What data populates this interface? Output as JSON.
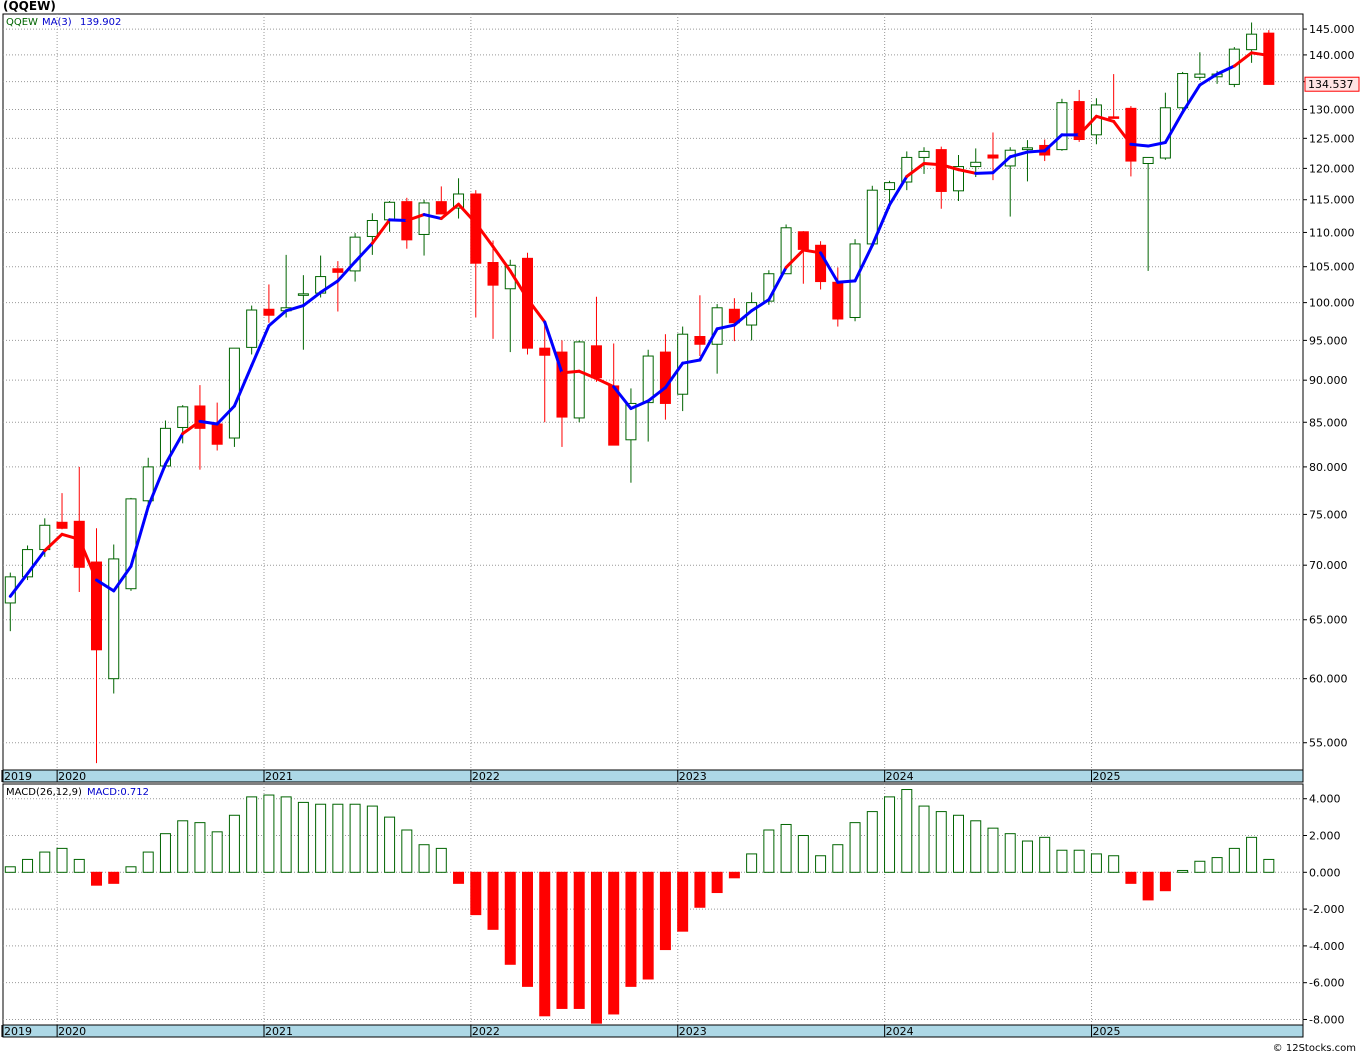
{
  "header": {
    "title": "(QQEW)"
  },
  "footer": {
    "copyright": "© 12Stocks.com"
  },
  "colors": {
    "up": "#006400",
    "down": "#ff0000",
    "ma_up": "#0000ff",
    "ma_down": "#ff0000",
    "axis_band": "#add8e6",
    "grid": "#999999"
  },
  "chart_data": [
    {
      "type": "candlestick",
      "legend": {
        "symbol": "QQEW",
        "ma_label": "MA(3)",
        "ma_value": "139.902"
      },
      "last_price_label": "134.537",
      "y_scale": "log",
      "ylim": [
        53.0,
        148.0
      ],
      "y_ticks": [
        "145.000",
        "140.000",
        "135.000",
        "130.000",
        "125.000",
        "120.000",
        "115.000",
        "110.000",
        "105.000",
        "100.000",
        "95.000",
        "90.000",
        "85.000",
        "80.000",
        "75.000",
        "70.000",
        "65.000",
        "60.000",
        "55.000"
      ],
      "x_labels": [
        {
          "label": "2019",
          "index": -0.1
        },
        {
          "label": "2020",
          "index": 3.1
        },
        {
          "label": "2021",
          "index": 15.1
        },
        {
          "label": "2022",
          "index": 27.1
        },
        {
          "label": "2023",
          "index": 39.1
        },
        {
          "label": "2024",
          "index": 51.1
        },
        {
          "label": "2025",
          "index": 63.1
        }
      ],
      "candles": [
        {
          "o": 66.5,
          "h": 69.3,
          "l": 64.0,
          "c": 68.9
        },
        {
          "o": 68.9,
          "h": 71.9,
          "l": 68.6,
          "c": 71.5
        },
        {
          "o": 71.5,
          "h": 74.6,
          "l": 70.8,
          "c": 73.9
        },
        {
          "o": 74.2,
          "h": 77.2,
          "l": 73.5,
          "c": 73.6
        },
        {
          "o": 74.3,
          "h": 80.0,
          "l": 67.5,
          "c": 69.8
        },
        {
          "o": 70.3,
          "h": 73.6,
          "l": 53.5,
          "c": 62.4
        },
        {
          "o": 60.0,
          "h": 72.0,
          "l": 58.8,
          "c": 70.6
        },
        {
          "o": 67.8,
          "h": 76.7,
          "l": 67.6,
          "c": 76.6
        },
        {
          "o": 76.4,
          "h": 81.0,
          "l": 75.8,
          "c": 80.0
        },
        {
          "o": 80.1,
          "h": 85.2,
          "l": 79.9,
          "c": 84.3
        },
        {
          "o": 84.4,
          "h": 87.0,
          "l": 82.6,
          "c": 86.8
        },
        {
          "o": 86.9,
          "h": 89.4,
          "l": 79.7,
          "c": 84.3
        },
        {
          "o": 84.8,
          "h": 87.3,
          "l": 81.8,
          "c": 82.5
        },
        {
          "o": 83.2,
          "h": 94.0,
          "l": 82.2,
          "c": 94.0
        },
        {
          "o": 94.1,
          "h": 99.6,
          "l": 93.2,
          "c": 99.0
        },
        {
          "o": 99.1,
          "h": 102.5,
          "l": 97.3,
          "c": 98.3
        },
        {
          "o": 98.9,
          "h": 106.7,
          "l": 98.0,
          "c": 99.3
        },
        {
          "o": 101.0,
          "h": 103.8,
          "l": 93.8,
          "c": 101.2
        },
        {
          "o": 101.3,
          "h": 106.6,
          "l": 100.7,
          "c": 103.6
        },
        {
          "o": 104.7,
          "h": 105.8,
          "l": 98.8,
          "c": 104.2
        },
        {
          "o": 104.4,
          "h": 109.9,
          "l": 102.9,
          "c": 109.3
        },
        {
          "o": 109.4,
          "h": 112.9,
          "l": 106.7,
          "c": 111.8
        },
        {
          "o": 111.9,
          "h": 114.8,
          "l": 110.1,
          "c": 114.6
        },
        {
          "o": 114.7,
          "h": 115.3,
          "l": 107.6,
          "c": 108.9
        },
        {
          "o": 109.7,
          "h": 115.0,
          "l": 106.6,
          "c": 114.5
        },
        {
          "o": 114.7,
          "h": 117.1,
          "l": 112.9,
          "c": 112.8
        },
        {
          "o": 113.7,
          "h": 118.4,
          "l": 112.1,
          "c": 115.9
        },
        {
          "o": 115.9,
          "h": 116.5,
          "l": 98.0,
          "c": 105.5
        },
        {
          "o": 105.6,
          "h": 108.8,
          "l": 95.2,
          "c": 102.4
        },
        {
          "o": 101.9,
          "h": 106.0,
          "l": 93.5,
          "c": 105.2
        },
        {
          "o": 106.2,
          "h": 107.0,
          "l": 93.2,
          "c": 94.0
        },
        {
          "o": 94.0,
          "h": 97.0,
          "l": 85.0,
          "c": 93.1
        },
        {
          "o": 93.5,
          "h": 95.0,
          "l": 82.2,
          "c": 85.6
        },
        {
          "o": 85.5,
          "h": 95.0,
          "l": 85.0,
          "c": 94.8
        },
        {
          "o": 94.3,
          "h": 100.8,
          "l": 89.8,
          "c": 90.3
        },
        {
          "o": 89.3,
          "h": 94.6,
          "l": 82.4,
          "c": 82.4
        },
        {
          "o": 83.0,
          "h": 89.0,
          "l": 78.3,
          "c": 87.2
        },
        {
          "o": 87.3,
          "h": 93.8,
          "l": 82.8,
          "c": 93.0
        },
        {
          "o": 93.5,
          "h": 95.8,
          "l": 85.3,
          "c": 87.2
        },
        {
          "o": 88.3,
          "h": 96.8,
          "l": 86.3,
          "c": 95.8
        },
        {
          "o": 95.5,
          "h": 101.0,
          "l": 93.0,
          "c": 94.5
        },
        {
          "o": 94.5,
          "h": 99.8,
          "l": 90.8,
          "c": 99.3
        },
        {
          "o": 99.1,
          "h": 100.6,
          "l": 94.9,
          "c": 97.3
        },
        {
          "o": 97.0,
          "h": 101.4,
          "l": 95.0,
          "c": 100.0
        },
        {
          "o": 100.2,
          "h": 104.5,
          "l": 99.7,
          "c": 104.0
        },
        {
          "o": 104.0,
          "h": 111.2,
          "l": 104.0,
          "c": 110.7
        },
        {
          "o": 110.1,
          "h": 110.2,
          "l": 102.6,
          "c": 107.5
        },
        {
          "o": 108.1,
          "h": 108.7,
          "l": 101.8,
          "c": 102.9
        },
        {
          "o": 102.8,
          "h": 104.9,
          "l": 96.8,
          "c": 97.8
        },
        {
          "o": 98.0,
          "h": 109.0,
          "l": 97.5,
          "c": 108.3
        },
        {
          "o": 108.3,
          "h": 117.2,
          "l": 108.0,
          "c": 116.5
        },
        {
          "o": 116.6,
          "h": 118.0,
          "l": 113.6,
          "c": 117.7
        },
        {
          "o": 117.8,
          "h": 122.8,
          "l": 116.5,
          "c": 121.8
        },
        {
          "o": 121.8,
          "h": 123.5,
          "l": 119.1,
          "c": 122.8
        },
        {
          "o": 123.1,
          "h": 123.6,
          "l": 113.6,
          "c": 116.3
        },
        {
          "o": 116.4,
          "h": 122.2,
          "l": 114.8,
          "c": 120.3
        },
        {
          "o": 120.3,
          "h": 123.3,
          "l": 118.6,
          "c": 121.0
        },
        {
          "o": 122.2,
          "h": 126.0,
          "l": 118.1,
          "c": 121.7
        },
        {
          "o": 120.4,
          "h": 123.5,
          "l": 112.4,
          "c": 123.0
        },
        {
          "o": 123.1,
          "h": 124.7,
          "l": 117.9,
          "c": 123.4
        },
        {
          "o": 123.8,
          "h": 124.8,
          "l": 121.2,
          "c": 122.2
        },
        {
          "o": 123.1,
          "h": 131.9,
          "l": 122.9,
          "c": 131.2
        },
        {
          "o": 131.4,
          "h": 133.5,
          "l": 124.4,
          "c": 124.8
        },
        {
          "o": 125.6,
          "h": 132.0,
          "l": 124.0,
          "c": 130.8
        },
        {
          "o": 128.7,
          "h": 136.4,
          "l": 128.4,
          "c": 128.6
        },
        {
          "o": 130.2,
          "h": 130.6,
          "l": 118.7,
          "c": 121.2
        },
        {
          "o": 120.8,
          "h": 121.6,
          "l": 104.4,
          "c": 121.8
        },
        {
          "o": 121.7,
          "h": 133.0,
          "l": 121.4,
          "c": 130.3
        },
        {
          "o": 130.3,
          "h": 136.8,
          "l": 129.7,
          "c": 136.5
        },
        {
          "o": 135.8,
          "h": 140.5,
          "l": 135.3,
          "c": 136.4
        },
        {
          "o": 135.9,
          "h": 137.0,
          "l": 134.6,
          "c": 136.4
        },
        {
          "o": 134.5,
          "h": 141.5,
          "l": 134.0,
          "c": 141.1
        },
        {
          "o": 141.0,
          "h": 146.3,
          "l": 138.5,
          "c": 144.0
        },
        {
          "o": 144.2,
          "h": 144.8,
          "l": 134.5,
          "c": 134.5
        }
      ],
      "ma": [
        {
          "v": 67.1,
          "dir": "up"
        },
        {
          "v": 69.2,
          "dir": "up"
        },
        {
          "v": 71.4,
          "dir": "up"
        },
        {
          "v": 73.0,
          "dir": "down"
        },
        {
          "v": 72.5,
          "dir": "down"
        },
        {
          "v": 68.6,
          "dir": "down"
        },
        {
          "v": 67.6,
          "dir": "up"
        },
        {
          "v": 69.9,
          "dir": "up"
        },
        {
          "v": 75.8,
          "dir": "up"
        },
        {
          "v": 80.3,
          "dir": "up"
        },
        {
          "v": 83.7,
          "dir": "up"
        },
        {
          "v": 85.1,
          "dir": "down"
        },
        {
          "v": 84.8,
          "dir": "up"
        },
        {
          "v": 86.9,
          "dir": "up"
        },
        {
          "v": 91.8,
          "dir": "up"
        },
        {
          "v": 96.9,
          "dir": "up"
        },
        {
          "v": 98.9,
          "dir": "up"
        },
        {
          "v": 99.6,
          "dir": "up"
        },
        {
          "v": 101.4,
          "dir": "up"
        },
        {
          "v": 103.0,
          "dir": "up"
        },
        {
          "v": 105.7,
          "dir": "up"
        },
        {
          "v": 108.4,
          "dir": "up"
        },
        {
          "v": 111.9,
          "dir": "down"
        },
        {
          "v": 111.8,
          "dir": "up"
        },
        {
          "v": 112.7,
          "dir": "down"
        },
        {
          "v": 112.1,
          "dir": "up"
        },
        {
          "v": 114.3,
          "dir": "down"
        },
        {
          "v": 111.4,
          "dir": "down"
        },
        {
          "v": 107.9,
          "dir": "down"
        },
        {
          "v": 104.4,
          "dir": "down"
        },
        {
          "v": 100.5,
          "dir": "down"
        },
        {
          "v": 97.4,
          "dir": "down"
        },
        {
          "v": 90.9,
          "dir": "up"
        },
        {
          "v": 91.1,
          "dir": "down"
        },
        {
          "v": 90.2,
          "dir": "down"
        },
        {
          "v": 89.2,
          "dir": "down"
        },
        {
          "v": 86.6,
          "dir": "up"
        },
        {
          "v": 87.5,
          "dir": "up"
        },
        {
          "v": 89.1,
          "dir": "up"
        },
        {
          "v": 92.1,
          "dir": "up"
        },
        {
          "v": 92.5,
          "dir": "up"
        },
        {
          "v": 96.5,
          "dir": "up"
        },
        {
          "v": 97.0,
          "dir": "up"
        },
        {
          "v": 98.9,
          "dir": "up"
        },
        {
          "v": 100.4,
          "dir": "up"
        },
        {
          "v": 104.9,
          "dir": "up"
        },
        {
          "v": 107.4,
          "dir": "down"
        },
        {
          "v": 107.0,
          "dir": "down"
        },
        {
          "v": 102.8,
          "dir": "up"
        },
        {
          "v": 103.0,
          "dir": "up"
        },
        {
          "v": 108.1,
          "dir": "up"
        },
        {
          "v": 114.2,
          "dir": "up"
        },
        {
          "v": 118.7,
          "dir": "up"
        },
        {
          "v": 120.8,
          "dir": "down"
        },
        {
          "v": 120.6,
          "dir": "down"
        },
        {
          "v": 119.8,
          "dir": "down"
        },
        {
          "v": 119.2,
          "dir": "down"
        },
        {
          "v": 119.3,
          "dir": "up"
        },
        {
          "v": 121.9,
          "dir": "up"
        },
        {
          "v": 122.7,
          "dir": "up"
        },
        {
          "v": 122.9,
          "dir": "up"
        },
        {
          "v": 125.6,
          "dir": "up"
        },
        {
          "v": 125.6,
          "dir": "up"
        },
        {
          "v": 128.8,
          "dir": "down"
        },
        {
          "v": 127.9,
          "dir": "down"
        },
        {
          "v": 124.0,
          "dir": "down"
        },
        {
          "v": 123.7,
          "dir": "up"
        },
        {
          "v": 124.3,
          "dir": "up"
        },
        {
          "v": 129.5,
          "dir": "up"
        },
        {
          "v": 134.4,
          "dir": "up"
        },
        {
          "v": 136.4,
          "dir": "up"
        },
        {
          "v": 137.9,
          "dir": "up"
        },
        {
          "v": 140.4,
          "dir": "down"
        },
        {
          "v": 139.9,
          "dir": "down"
        }
      ]
    },
    {
      "type": "bar",
      "legend": {
        "label": "MACD(26,12,9)",
        "value_label": "MACD:0.712"
      },
      "ylim": [
        -8.3,
        4.8
      ],
      "y_ticks": [
        "4.000",
        "2.000",
        "0.000",
        "-2.000",
        "-4.000",
        "-6.000",
        "-8.000"
      ],
      "x_labels": [
        {
          "label": "2019",
          "index": -0.1
        },
        {
          "label": "2020",
          "index": 3.1
        },
        {
          "label": "2021",
          "index": 15.1
        },
        {
          "label": "2022",
          "index": 27.1
        },
        {
          "label": "2023",
          "index": 39.1
        },
        {
          "label": "2024",
          "index": 51.1
        },
        {
          "label": "2025",
          "index": 63.1
        }
      ],
      "values": [
        0.3,
        0.7,
        1.1,
        1.3,
        0.7,
        -0.7,
        -0.6,
        0.3,
        1.1,
        2.1,
        2.8,
        2.7,
        2.2,
        3.1,
        4.1,
        4.2,
        4.1,
        3.8,
        3.7,
        3.7,
        3.7,
        3.6,
        3.0,
        2.3,
        1.5,
        1.3,
        -0.6,
        -2.3,
        -3.1,
        -5.0,
        -6.2,
        -7.8,
        -7.4,
        -7.4,
        -8.2,
        -7.7,
        -6.2,
        -5.8,
        -4.2,
        -3.2,
        -1.9,
        -1.1,
        -0.3,
        1.0,
        2.3,
        2.6,
        2.0,
        0.9,
        1.5,
        2.7,
        3.3,
        4.1,
        4.5,
        3.6,
        3.3,
        3.1,
        2.8,
        2.4,
        2.1,
        1.7,
        1.9,
        1.2,
        1.2,
        1.0,
        0.9,
        -0.6,
        -1.5,
        -1.0,
        0.1,
        0.6,
        0.8,
        1.3,
        1.9,
        0.7
      ]
    }
  ]
}
